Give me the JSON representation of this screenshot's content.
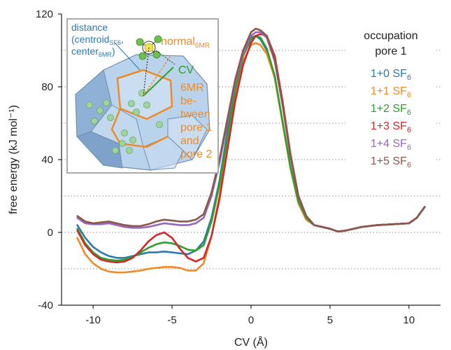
{
  "chart_data": {
    "type": "line",
    "xlabel": "CV (Å)",
    "ylabel": "free energy (kJ mol⁻¹)",
    "xlim": [
      -12,
      12
    ],
    "ylim": [
      -40,
      120
    ],
    "x_ticks": [
      -10,
      -5,
      0,
      5,
      10
    ],
    "y_ticks": [
      -40,
      0,
      40,
      80,
      120
    ],
    "y_ticks_dotted": [
      -20,
      0,
      20,
      40,
      60,
      80,
      100
    ],
    "grid": "horizontal dotted",
    "legend": {
      "title_line1": "occupation",
      "title_line2": "pore 1",
      "placement": "top-right",
      "entries": [
        {
          "label": "1+0 SF",
          "sub": "6",
          "color": "#2a7ab0"
        },
        {
          "label": "1+1 SF",
          "sub": "6",
          "color": "#f08a24"
        },
        {
          "label": "1+2 SF",
          "sub": "6",
          "color": "#2ca02c"
        },
        {
          "label": "1+3 SF",
          "sub": "6",
          "color": "#d62728"
        },
        {
          "label": "1+4 SF",
          "sub": "6",
          "color": "#9467bd"
        },
        {
          "label": "1+5 SF",
          "sub": "6",
          "color": "#8c564b"
        }
      ]
    },
    "series": [
      {
        "name": "1+0 SF6",
        "color": "#2a7ab0",
        "x": [
          -11,
          -10.5,
          -10,
          -9.5,
          -9,
          -8.5,
          -8,
          -7.5,
          -7,
          -6.5,
          -6,
          -5.5,
          -5,
          -4.5,
          -4,
          -3.5,
          -3,
          -2.5,
          -2,
          -1.5,
          -1,
          -0.5,
          0,
          0.3,
          0.6,
          1,
          1.5,
          2,
          2.5,
          3,
          3.5,
          4,
          4.5,
          5,
          5.5,
          6,
          7,
          8,
          9,
          10,
          10.5,
          11
        ],
        "y": [
          4,
          -3,
          -8,
          -11,
          -13,
          -14,
          -14,
          -13,
          -12,
          -11,
          -11,
          -10.5,
          -11,
          -11.5,
          -12,
          -10,
          -5,
          8,
          28,
          55,
          80,
          98,
          107,
          108,
          106,
          100,
          85,
          60,
          35,
          16,
          7,
          4,
          3,
          2,
          0.5,
          1,
          3,
          4,
          4.5,
          5,
          8,
          14
        ]
      },
      {
        "name": "1+1 SF6",
        "color": "#f08a24",
        "x": [
          -11,
          -10.5,
          -10,
          -9.5,
          -9,
          -8.5,
          -8,
          -7.5,
          -7,
          -6.5,
          -6,
          -5.5,
          -5,
          -4.5,
          -4,
          -3.5,
          -3,
          -2.5,
          -2,
          -1.5,
          -1,
          -0.5,
          0,
          0.3,
          0.6,
          1,
          1.5,
          2,
          2.5,
          3,
          3.5,
          4,
          4.5,
          5,
          5.5,
          6,
          7,
          8,
          9,
          10,
          10.5,
          11
        ],
        "y": [
          -3,
          -12,
          -17,
          -20,
          -21.5,
          -22,
          -22,
          -21.5,
          -21,
          -20,
          -19.5,
          -19,
          -19,
          -19.5,
          -21,
          -21,
          -17,
          -2,
          20,
          48,
          75,
          94,
          103,
          104,
          103,
          98,
          85,
          60,
          35,
          16,
          7,
          4,
          3,
          2,
          0.5,
          1,
          3,
          4,
          4.5,
          5,
          8,
          14
        ]
      },
      {
        "name": "1+2 SF6",
        "color": "#2ca02c",
        "x": [
          -11,
          -10.5,
          -10,
          -9.5,
          -9,
          -8.5,
          -8,
          -7.5,
          -7,
          -6.5,
          -6,
          -5.5,
          -5,
          -4.5,
          -4,
          -3.5,
          -3,
          -2.5,
          -2,
          -1.5,
          -1,
          -0.5,
          0,
          0.3,
          0.6,
          1,
          1.5,
          2,
          2.5,
          3,
          3.5,
          4,
          4.5,
          5,
          5.5,
          6,
          7,
          8,
          9,
          10,
          10.5,
          11
        ],
        "y": [
          2,
          -6,
          -11,
          -14,
          -15,
          -15.5,
          -15,
          -13.5,
          -11,
          -8.5,
          -6.5,
          -5.5,
          -6,
          -7.5,
          -9.5,
          -10,
          -7,
          6,
          26,
          52,
          78,
          97,
          106,
          108,
          107,
          101,
          86,
          61,
          36,
          17,
          8,
          4,
          3,
          2,
          0.5,
          1,
          3,
          4,
          4.5,
          5,
          8,
          14
        ]
      },
      {
        "name": "1+3 SF6",
        "color": "#d62728",
        "x": [
          -11,
          -10.5,
          -10,
          -9.5,
          -9,
          -8.5,
          -8,
          -7.5,
          -7,
          -6.5,
          -6,
          -5.5,
          -5,
          -4.5,
          -4,
          -3.5,
          -3,
          -2.5,
          -2,
          -1.5,
          -1,
          -0.5,
          0,
          0.3,
          0.6,
          1,
          1.5,
          2,
          2.5,
          3,
          3.5,
          4,
          4.5,
          5,
          5.5,
          6,
          7,
          8,
          9,
          10,
          10.5,
          11
        ],
        "y": [
          1,
          -7,
          -12,
          -15,
          -16,
          -16.5,
          -16,
          -14,
          -10,
          -5,
          -1.5,
          0,
          -3,
          -9,
          -14,
          -16,
          -14,
          -2,
          18,
          45,
          72,
          92,
          104,
          108,
          109,
          108,
          97,
          72,
          43,
          20,
          9,
          4,
          3,
          2,
          0.5,
          1,
          3,
          4,
          4.5,
          5,
          8,
          14
        ]
      },
      {
        "name": "1+4 SF6",
        "color": "#9467bd",
        "x": [
          -11,
          -10.5,
          -10,
          -9.5,
          -9,
          -8.5,
          -8,
          -7.5,
          -7,
          -6.5,
          -6,
          -5.5,
          -5,
          -4.5,
          -4,
          -3.5,
          -3,
          -2.5,
          -2,
          -1.5,
          -1,
          -0.5,
          0,
          0.3,
          0.6,
          1,
          1.5,
          2,
          2.5,
          3,
          3.5,
          4,
          4.5,
          5,
          5.5,
          6,
          7,
          8,
          9,
          10,
          10.5,
          11
        ],
        "y": [
          8,
          5,
          4.5,
          4.5,
          5,
          4,
          3,
          2.5,
          2.5,
          3,
          4,
          5,
          4.5,
          4,
          4,
          5,
          8,
          20,
          38,
          60,
          82,
          98,
          108,
          110,
          110,
          107,
          94,
          70,
          42,
          20,
          9,
          4,
          3,
          2,
          0.5,
          1,
          3,
          4,
          4.5,
          5,
          8,
          14
        ]
      },
      {
        "name": "1+5 SF6",
        "color": "#8c564b",
        "x": [
          -11,
          -10.5,
          -10,
          -9.5,
          -9,
          -8.5,
          -8,
          -7.5,
          -7,
          -6.5,
          -6,
          -5.5,
          -5,
          -4.5,
          -4,
          -3.5,
          -3,
          -2.5,
          -2,
          -1.5,
          -1,
          -0.5,
          0,
          0.3,
          0.6,
          1,
          1.5,
          2,
          2.5,
          3,
          3.5,
          4,
          4.5,
          5,
          5.5,
          6,
          7,
          8,
          9,
          10,
          10.5,
          11
        ],
        "y": [
          9,
          6,
          5,
          5.5,
          6,
          5,
          4,
          3.5,
          3.5,
          4.5,
          6,
          7,
          6.5,
          6,
          6,
          7,
          10,
          22,
          40,
          62,
          84,
          100,
          110,
          112,
          111,
          108,
          95,
          70,
          42,
          20,
          9,
          4,
          3,
          2,
          0.5,
          1,
          3,
          4,
          4.5,
          5,
          8,
          14
        ]
      }
    ],
    "inset": {
      "label_distance_1": "distance",
      "label_distance_2": "(centroid",
      "label_distance_2_sub": "SF6",
      "label_distance_2_end": ",",
      "label_distance_3": "center",
      "label_distance_3_sub": "6MR",
      "label_distance_3_end": ")",
      "label_normal": "normal",
      "label_normal_sub": "6MR",
      "label_cv": "CV",
      "label_6mr_lines": [
        "6MR",
        "be-",
        "tween",
        "pore 1",
        "and",
        "pore 2"
      ],
      "color_blue_text": "#2a7ab0",
      "color_orange": "#f08a24",
      "color_green": "#2ca02c",
      "color_cage": "#a9c8e6"
    }
  }
}
